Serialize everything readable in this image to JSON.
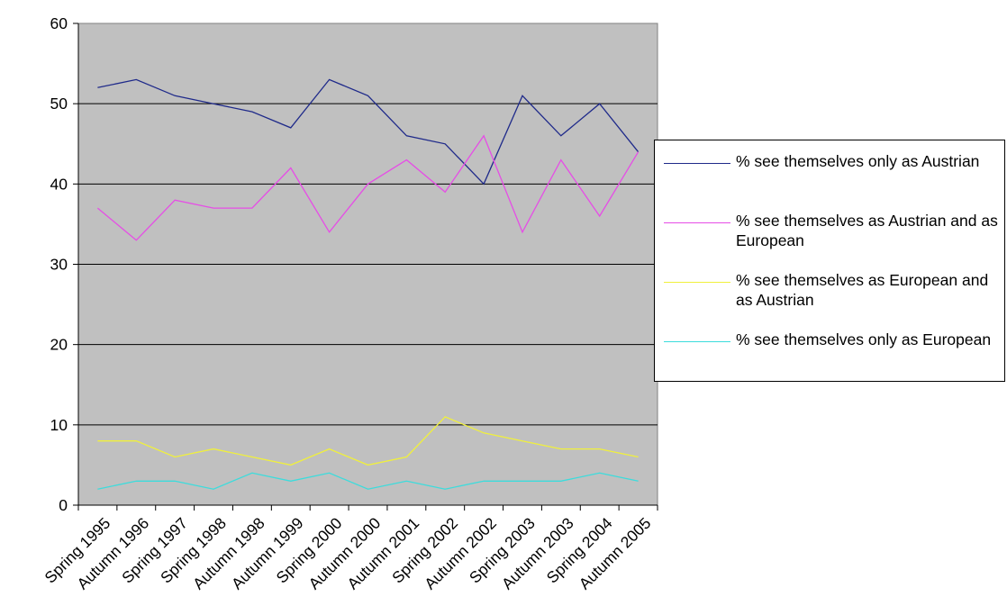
{
  "chart_data": {
    "type": "line",
    "title": "",
    "xlabel": "",
    "ylabel": "",
    "ylim": [
      0,
      60
    ],
    "yticks": [
      0,
      10,
      20,
      30,
      40,
      50,
      60
    ],
    "grid": true,
    "plot_background": "#c0c0c0",
    "legend_position": "right",
    "categories": [
      "Spring 1995",
      "Autumn 1996",
      "Spring 1997",
      "Spring 1998",
      "Autumn 1998",
      "Autumn 1999",
      "Spring 2000",
      "Autumn 2000",
      "Autumn 2001",
      "Spring 2002",
      "Autumn 2002",
      "Spring 2003",
      "Autumn 2003",
      "Spring 2004",
      "Autumn 2005"
    ],
    "series": [
      {
        "name": "% see themselves only as Austrian",
        "color": "#1f2a8a",
        "values": [
          52,
          53,
          51,
          50,
          49,
          47,
          53,
          51,
          46,
          45,
          40,
          51,
          46,
          50,
          44
        ]
      },
      {
        "name": "% see themselves as Austrian and as European",
        "color": "#e64de6",
        "values": [
          37,
          33,
          38,
          37,
          37,
          42,
          34,
          40,
          43,
          39,
          46,
          34,
          43,
          36,
          44
        ]
      },
      {
        "name": "% see themselves as European and as Austrian",
        "color": "#f0f03c",
        "values": [
          8,
          8,
          6,
          7,
          6,
          5,
          7,
          5,
          6,
          11,
          9,
          8,
          7,
          7,
          6
        ]
      },
      {
        "name": "% see themselves only as European",
        "color": "#3cdcdc",
        "values": [
          2,
          3,
          3,
          2,
          4,
          3,
          4,
          2,
          3,
          2,
          3,
          3,
          3,
          4,
          3
        ]
      }
    ]
  }
}
